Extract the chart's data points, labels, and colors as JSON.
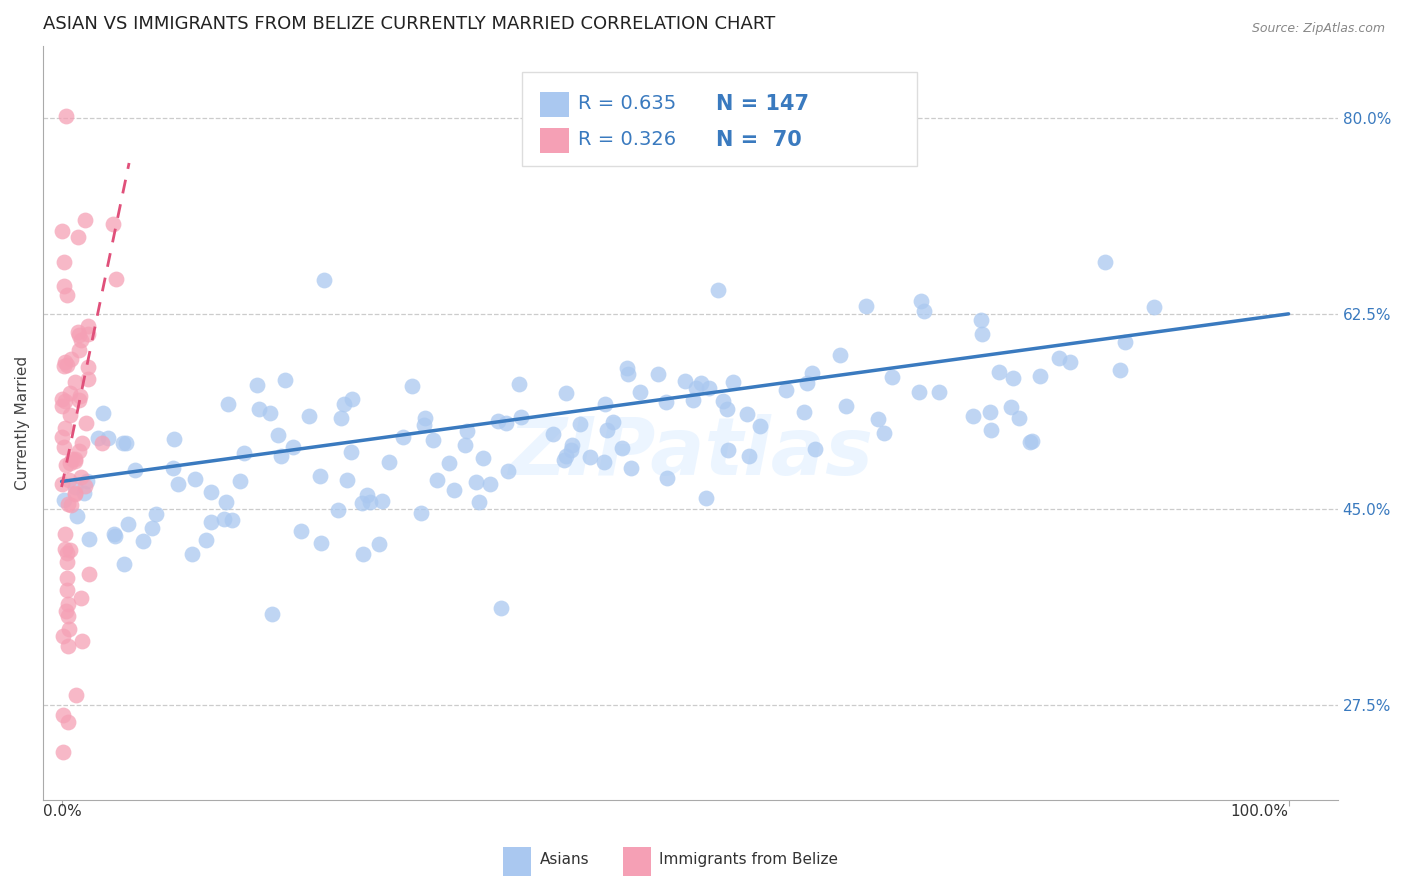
{
  "title": "ASIAN VS IMMIGRANTS FROM BELIZE CURRENTLY MARRIED CORRELATION CHART",
  "source_text": "Source: ZipAtlas.com",
  "ylabel": "Currently Married",
  "ytick_vals": [
    0.275,
    0.45,
    0.625,
    0.8
  ],
  "ytick_labels": [
    "27.5%",
    "45.0%",
    "62.5%",
    "80.0%"
  ],
  "xtick_labels": [
    "0.0%",
    "100.0%"
  ],
  "legend_R_asian": "R = 0.635",
  "legend_N_asian": "N = 147",
  "legend_R_belize": "R = 0.326",
  "legend_N_belize": "N =  70",
  "legend_label_asian": "Asians",
  "legend_label_belize": "Immigrants from Belize",
  "asian_color": "#aac8f0",
  "belize_color": "#f5a0b5",
  "asian_line_color": "#3a7abf",
  "belize_line_color": "#e0507a",
  "watermark": "ZIPatlas",
  "title_fontsize": 13,
  "axis_label_fontsize": 11,
  "tick_fontsize": 11,
  "legend_fontsize": 14
}
